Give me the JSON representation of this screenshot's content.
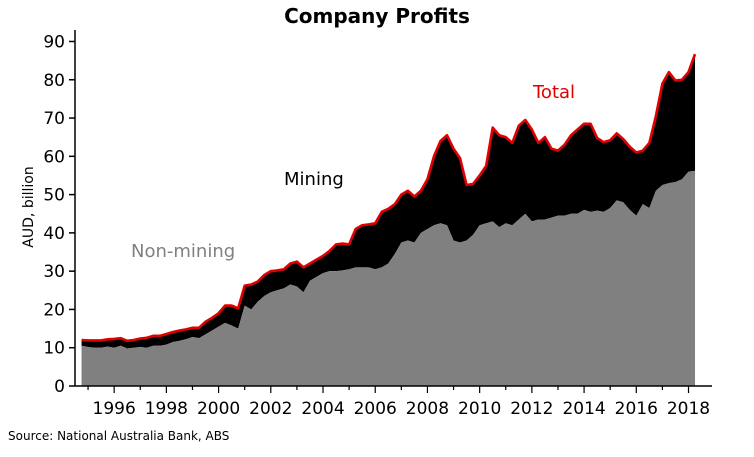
{
  "chart_data": {
    "type": "area",
    "title": "Company Profits",
    "ylabel": "AUD, billion",
    "xlabel": "",
    "ylim": [
      0,
      93
    ],
    "xlim": [
      1994.5,
      2018.9
    ],
    "yticks": [
      0,
      10,
      20,
      30,
      40,
      50,
      60,
      70,
      80,
      90
    ],
    "xticks": [
      1996,
      1998,
      2000,
      2002,
      2004,
      2006,
      2008,
      2010,
      2012,
      2014,
      2016,
      2018
    ],
    "grid": false,
    "stacked": true,
    "annotations": [
      {
        "text": "Non-mining",
        "color": "#808080"
      },
      {
        "text": "Mining",
        "color": "#000000"
      },
      {
        "text": "Total",
        "color": "#e00000"
      }
    ],
    "series": [
      {
        "name": "Non-mining",
        "color": "#808080",
        "x": [
          1994.75,
          1995,
          1995.25,
          1995.5,
          1995.75,
          1996,
          1996.25,
          1996.5,
          1996.75,
          1997,
          1997.25,
          1997.5,
          1997.75,
          1998,
          1998.25,
          1998.5,
          1998.75,
          1999,
          1999.25,
          1999.5,
          1999.75,
          2000,
          2000.25,
          2000.5,
          2000.75,
          2001,
          2001.25,
          2001.5,
          2001.75,
          2002,
          2002.25,
          2002.5,
          2002.75,
          2003,
          2003.25,
          2003.5,
          2003.75,
          2004,
          2004.25,
          2004.5,
          2004.75,
          2005,
          2005.25,
          2005.5,
          2005.75,
          2006,
          2006.25,
          2006.5,
          2006.75,
          2007,
          2007.25,
          2007.5,
          2007.75,
          2008,
          2008.25,
          2008.5,
          2008.75,
          2009,
          2009.25,
          2009.5,
          2009.75,
          2010,
          2010.25,
          2010.5,
          2010.75,
          2011,
          2011.25,
          2011.5,
          2011.75,
          2012,
          2012.25,
          2012.5,
          2012.75,
          2013,
          2013.25,
          2013.5,
          2013.75,
          2014,
          2014.25,
          2014.5,
          2014.75,
          2015,
          2015.25,
          2015.5,
          2015.75,
          2016,
          2016.25,
          2016.5,
          2016.75,
          2017,
          2017.25,
          2017.5,
          2017.75,
          2018,
          2018.25
        ],
        "values": [
          10.5,
          10.2,
          10,
          10,
          10.3,
          10,
          10.5,
          9.8,
          10,
          10.2,
          10,
          10.5,
          10.5,
          10.8,
          11.5,
          11.8,
          12.2,
          12.8,
          12.5,
          13.5,
          14.5,
          15.5,
          16.5,
          15.8,
          15,
          21,
          20,
          22,
          23.5,
          24.5,
          25,
          25.5,
          26.5,
          26,
          24.5,
          27.5,
          28.5,
          29.5,
          30,
          30,
          30.2,
          30.5,
          31,
          31,
          31,
          30.5,
          31,
          32,
          34.5,
          37.5,
          38,
          37.5,
          40,
          41,
          42,
          42.5,
          42,
          38,
          37.5,
          38,
          39.5,
          42,
          42.5,
          43,
          41.5,
          42.5,
          42,
          43.5,
          45,
          43,
          43.5,
          43.5,
          44,
          44.5,
          44.5,
          45,
          45,
          46,
          45.5,
          45.8,
          45.5,
          46.5,
          48.5,
          48,
          46,
          44.5,
          47.5,
          46.5,
          51,
          52.5,
          53,
          53.3,
          54,
          56,
          56.2
        ]
      },
      {
        "name": "Mining",
        "color": "#000000",
        "values": [
          1.5,
          1.7,
          1.9,
          1.9,
          1.9,
          2.3,
          2,
          2,
          2,
          2.2,
          2.6,
          2.6,
          2.6,
          2.8,
          2.6,
          2.7,
          2.6,
          2.4,
          2.7,
          3.3,
          3.3,
          3.5,
          4.5,
          5.2,
          5.3,
          5.2,
          6.5,
          5.3,
          5.5,
          5.5,
          5.2,
          5,
          5.5,
          6.5,
          6.5,
          4.5,
          4.5,
          4.5,
          5.3,
          7,
          7,
          6.5,
          10,
          11,
          11.2,
          12,
          14.5,
          14.3,
          13,
          12.5,
          13,
          12,
          11,
          13,
          18,
          21.5,
          23.5,
          24,
          22,
          14.5,
          13.3,
          13,
          15,
          24.5,
          24,
          22.5,
          21.5,
          24.5,
          24.5,
          24,
          20,
          21.5,
          18,
          17,
          18.5,
          20.5,
          22,
          22.5,
          23,
          19,
          18.2,
          17.7,
          17.5,
          16.5,
          16.5,
          16.5,
          14,
          17,
          19.5,
          26.5,
          29,
          26.5,
          26,
          26,
          30.5,
          32
        ]
      }
    ],
    "source": "Source: National Australia Bank, ABS"
  }
}
